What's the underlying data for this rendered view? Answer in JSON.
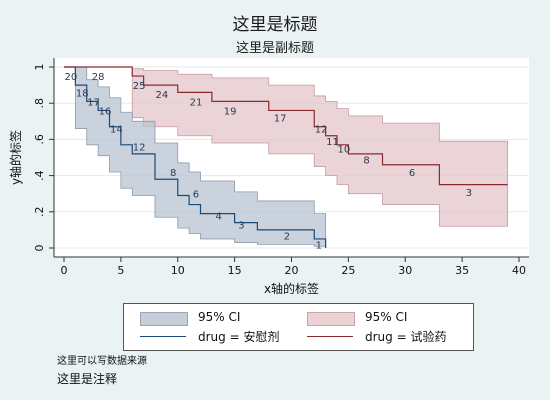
{
  "title": "这里是标题",
  "subtitle": "这里是副标题",
  "note_source": "这里可以写数据来源",
  "note_text": "这里是注释",
  "colors": {
    "placebo_line": "#1a4a7a",
    "placebo_ci": "#b8c4d2",
    "drug_line": "#8a2a30",
    "drug_ci": "#e3c5c9",
    "background": "#eaf2f3"
  },
  "legend": {
    "placement": "bottom",
    "items": [
      {
        "label": "95% CI",
        "kind": "ci",
        "series": "placebo"
      },
      {
        "label": "95% CI",
        "kind": "ci",
        "series": "drug"
      },
      {
        "label": "drug = 安慰剂",
        "kind": "line",
        "series": "placebo"
      },
      {
        "label": "drug = 试验药",
        "kind": "line",
        "series": "drug"
      }
    ]
  },
  "chart_data": {
    "type": "line",
    "subtype": "kaplan-meier step",
    "title": "这里是标题",
    "subtitle": "这里是副标题",
    "xlabel": "x轴的标签",
    "ylabel": "y轴的标签",
    "xlim": [
      0,
      40
    ],
    "ylim": [
      0,
      1
    ],
    "xticks": [
      "0",
      "10",
      "20",
      "30",
      "40"
    ],
    "xtick_values": [
      0,
      10,
      20,
      30,
      40
    ],
    "xtick_minor_values": [
      5,
      15,
      25,
      35
    ],
    "xtick_minor_labels": [
      "5",
      "15",
      "25",
      "35"
    ],
    "yticks": [
      "0",
      ".2",
      ".4",
      ".6",
      ".8",
      "1"
    ],
    "ytick_values": [
      0,
      0.2,
      0.4,
      0.6,
      0.8,
      1
    ],
    "grid": true,
    "legend": "bottom",
    "series": [
      {
        "name": "drug = 安慰剂",
        "key": "placebo",
        "x": [
          0,
          1,
          2,
          3,
          4,
          5,
          6,
          8,
          10,
          11,
          12,
          15,
          17,
          22,
          23
        ],
        "y": [
          1,
          0.9,
          0.81,
          0.76,
          0.67,
          0.57,
          0.52,
          0.38,
          0.29,
          0.24,
          0.19,
          0.14,
          0.1,
          0.05,
          0
        ],
        "ci_lower": [
          1,
          0.66,
          0.57,
          0.51,
          0.42,
          0.33,
          0.29,
          0.17,
          0.11,
          0.08,
          0.05,
          0.03,
          0.02,
          0.01,
          0
        ],
        "ci_upper": [
          1,
          1.0,
          0.93,
          0.89,
          0.83,
          0.75,
          0.7,
          0.58,
          0.47,
          0.42,
          0.37,
          0.31,
          0.26,
          0.19,
          0
        ],
        "x_end": 23,
        "at_risk_labels": [
          "20",
          "18",
          "17",
          "16",
          "14",
          "12",
          "8",
          "6",
          "4",
          "3",
          "2",
          "1"
        ],
        "at_risk_x": [
          0.6,
          1.6,
          2.6,
          3.6,
          4.6,
          6.6,
          9.6,
          11.6,
          13.6,
          15.6,
          19.6,
          22.4
        ],
        "at_risk_y": [
          0.95,
          0.86,
          0.81,
          0.76,
          0.66,
          0.56,
          0.42,
          0.3,
          0.18,
          0.13,
          0.07,
          0.02
        ]
      },
      {
        "name": "drug = 试验药",
        "key": "drug",
        "x": [
          0,
          6,
          7,
          10,
          13,
          18,
          22,
          23,
          24,
          25,
          28,
          33
        ],
        "y": [
          1,
          0.95,
          0.9,
          0.86,
          0.81,
          0.76,
          0.67,
          0.62,
          0.57,
          0.52,
          0.46,
          0.35
        ],
        "ci_lower": [
          1,
          0.72,
          0.67,
          0.62,
          0.58,
          0.52,
          0.45,
          0.4,
          0.35,
          0.3,
          0.24,
          0.12
        ],
        "ci_upper": [
          1,
          0.99,
          0.98,
          0.96,
          0.94,
          0.9,
          0.84,
          0.81,
          0.77,
          0.73,
          0.69,
          0.59
        ],
        "x_end": 39,
        "at_risk_labels": [
          "28",
          "25",
          "24",
          "21",
          "19",
          "17",
          "12",
          "11",
          "10",
          "8",
          "6",
          "3"
        ],
        "at_risk_x": [
          3.0,
          6.6,
          8.6,
          11.6,
          14.6,
          19.0,
          22.6,
          23.6,
          24.6,
          26.6,
          30.6,
          35.6
        ],
        "at_risk_y": [
          0.95,
          0.9,
          0.85,
          0.81,
          0.76,
          0.72,
          0.66,
          0.59,
          0.55,
          0.49,
          0.42,
          0.31
        ]
      }
    ]
  }
}
